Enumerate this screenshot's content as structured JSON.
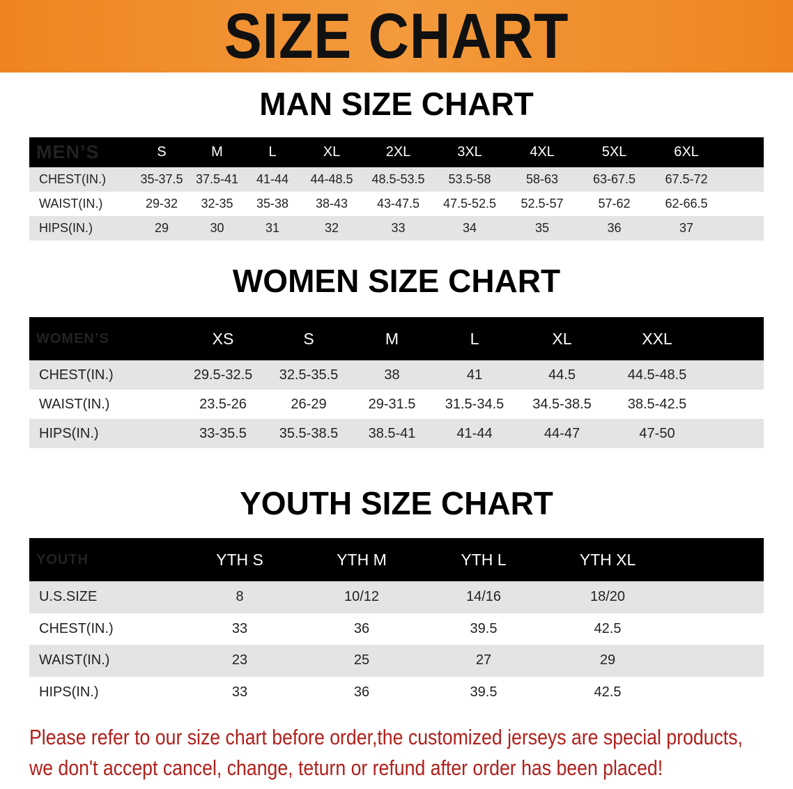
{
  "banner_title": "SIZE CHART",
  "accent_color": "#ee8420",
  "men": {
    "title": "MAN SIZE CHART",
    "header_label": "MEN’S",
    "sizes": [
      "S",
      "M",
      "L",
      "XL",
      "2XL",
      "3XL",
      "4XL",
      "5XL",
      "6XL"
    ],
    "rows": [
      {
        "label": "CHEST(IN.)",
        "values": [
          "35-37.5",
          "37.5-41",
          "41-44",
          "44-48.5",
          "48.5-53.5",
          "53.5-58",
          "58-63",
          "63-67.5",
          "67.5-72"
        ]
      },
      {
        "label": "WAIST(IN.)",
        "values": [
          "29-32",
          "32-35",
          "35-38",
          "38-43",
          "43-47.5",
          "47.5-52.5",
          "52.5-57",
          "57-62",
          "62-66.5"
        ]
      },
      {
        "label": "HIPS(IN.)",
        "values": [
          "29",
          "30",
          "31",
          "32",
          "33",
          "34",
          "35",
          "36",
          "37"
        ]
      }
    ]
  },
  "women": {
    "title": "WOMEN SIZE CHART",
    "header_label": "WOMEN’S",
    "sizes": [
      "XS",
      "S",
      "M",
      "L",
      "XL",
      "XXL"
    ],
    "rows": [
      {
        "label": "CHEST(IN.)",
        "values": [
          "29.5-32.5",
          "32.5-35.5",
          "38",
          "41",
          "44.5",
          "44.5-48.5"
        ]
      },
      {
        "label": "WAIST(IN.)",
        "values": [
          "23.5-26",
          "26-29",
          "29-31.5",
          "31.5-34.5",
          "34.5-38.5",
          "38.5-42.5"
        ]
      },
      {
        "label": "HIPS(IN.)",
        "values": [
          "33-35.5",
          "35.5-38.5",
          "38.5-41",
          "41-44",
          "44-47",
          "47-50"
        ]
      }
    ]
  },
  "youth": {
    "title": "YOUTH SIZE CHART",
    "header_label": "YOUTH",
    "sizes": [
      "YTH S",
      "YTH M",
      "YTH L",
      "YTH XL"
    ],
    "rows": [
      {
        "label": "U.S.SIZE",
        "values": [
          "8",
          "10/12",
          "14/16",
          "18/20"
        ]
      },
      {
        "label": "CHEST(IN.)",
        "values": [
          "33",
          "36",
          "39.5",
          "42.5"
        ]
      },
      {
        "label": "WAIST(IN.)",
        "values": [
          "23",
          "25",
          "27",
          "29"
        ]
      },
      {
        "label": "HIPS(IN.)",
        "values": [
          "33",
          "36",
          "39.5",
          "42.5"
        ]
      }
    ]
  },
  "note": {
    "line1": "Please refer to our size chart before order,the customized jerseys are special products,",
    "line2": "we don't accept cancel, change, teturn or refund after order has been placed!"
  }
}
